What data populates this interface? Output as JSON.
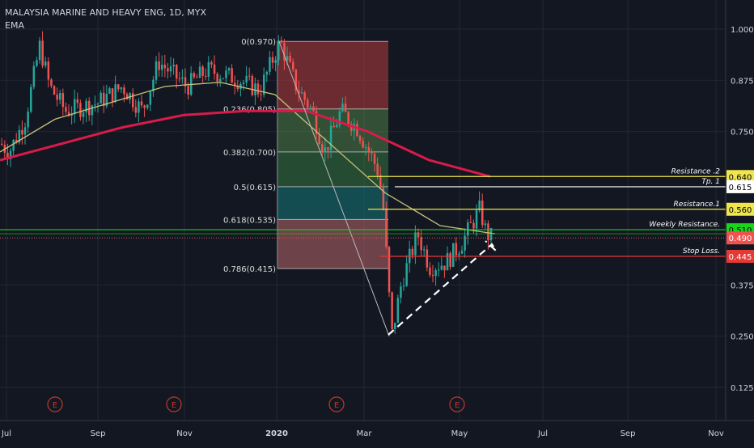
{
  "header": {
    "symbol_line": "MALAYSIA MARINE AND HEAVY ENG, 1D, MYX",
    "indicator": "EMA"
  },
  "colors": {
    "background": "#131722",
    "grid": "#232734",
    "candle_up": "#26a69a",
    "candle_down": "#ef5350",
    "ema_fast": "#c9c27a",
    "ema_slow": "#d81b4a",
    "fib_line": "#c9c9c9",
    "resistance": "#f0e64c",
    "tp": "#ffffff",
    "weekly_resistance": "#19d419",
    "stop_loss": "#e53935",
    "current_price": "#ef5350",
    "earnings": "#c0392b"
  },
  "chart_data": {
    "type": "candlestick",
    "title": "MALAYSIA MARINE AND HEAVY ENG, 1D, MYX",
    "x_ticks": [
      "Jul",
      "Sep",
      "Nov",
      "2020",
      "Mar",
      "May",
      "Jul",
      "Sep",
      "Nov"
    ],
    "y_ticks": [
      "1.000",
      "0.875",
      "0.750",
      "0.375",
      "0.250",
      "0.125"
    ],
    "y_range": [
      0.06,
      1.06
    ],
    "grid": true,
    "ohlc_summary": [
      {
        "period": "Jul 2019 start",
        "close": 0.72
      },
      {
        "period": "Aug 2019 peak",
        "close": 0.96
      },
      {
        "period": "Sep 2019",
        "close": 0.8
      },
      {
        "period": "Oct 2019",
        "close": 0.9
      },
      {
        "period": "Nov 2019",
        "close": 0.9
      },
      {
        "period": "Dec 2019",
        "close": 0.85
      },
      {
        "period": "Jan 2020 high",
        "close": 0.97
      },
      {
        "period": "Feb 2020",
        "close": 0.8
      },
      {
        "period": "Mar 2020 low",
        "close": 0.25
      },
      {
        "period": "Apr 2020",
        "close": 0.42
      },
      {
        "period": "May 2020 high",
        "close": 0.56
      },
      {
        "period": "May 2020 last",
        "close": 0.49
      }
    ],
    "series": [
      {
        "name": "EMA fast",
        "approx_values": [
          0.7,
          0.78,
          0.82,
          0.86,
          0.87,
          0.84,
          0.72,
          0.6,
          0.52,
          0.5
        ]
      },
      {
        "name": "EMA slow",
        "approx_values": [
          0.68,
          0.72,
          0.76,
          0.79,
          0.8,
          0.8,
          0.75,
          0.68,
          0.64
        ]
      }
    ],
    "fib_levels": [
      {
        "label": "0(0.970)",
        "value": 0.97
      },
      {
        "label": "0.236(0.805)",
        "value": 0.805
      },
      {
        "label": "0.382(0.700)",
        "value": 0.7
      },
      {
        "label": "0.5(0.615)",
        "value": 0.615
      },
      {
        "label": "0.618(0.535)",
        "value": 0.535
      },
      {
        "label": "0.786(0.415)",
        "value": 0.415
      }
    ],
    "horizontal_levels": [
      {
        "label": "Resistance .2",
        "value": 0.64,
        "price_label": "0.640",
        "kind": "resistance"
      },
      {
        "label": "Tp. 1",
        "value": 0.615,
        "price_label": "0.615",
        "kind": "tp"
      },
      {
        "label": "Resistance.1",
        "value": 0.56,
        "price_label": "0.560",
        "kind": "resistance"
      },
      {
        "label": "Weekly Resistance.",
        "value": 0.51,
        "price_label": "0.510",
        "kind": "weekly_resistance"
      },
      {
        "label": "Stop Loss.",
        "value": 0.445,
        "price_label": "0.445",
        "kind": "stop_loss"
      }
    ],
    "current_price": {
      "value": 0.49,
      "label": "0.490"
    },
    "earnings_marker": "E",
    "trendline": {
      "from": [
        0.25,
        "Mar 2020"
      ],
      "to": [
        0.49,
        "May 2020"
      ]
    }
  }
}
